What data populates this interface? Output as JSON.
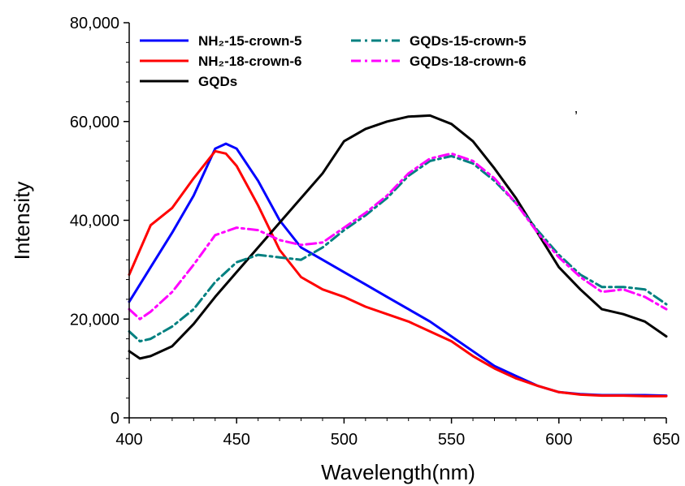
{
  "chart_data": {
    "type": "line",
    "title": "",
    "xlabel": "Wavelength(nm)",
    "ylabel": "Intensity",
    "xlim": [
      400,
      650
    ],
    "ylim": [
      0,
      80000
    ],
    "x_ticks": [
      400,
      450,
      500,
      550,
      600,
      650
    ],
    "x_tick_labels": [
      "400",
      "450",
      "500",
      "550",
      "600",
      "650"
    ],
    "y_ticks": [
      0,
      20000,
      40000,
      60000,
      80000
    ],
    "y_tick_labels": [
      "0",
      "20,000",
      "40,000",
      "60,000",
      "80,000"
    ],
    "grid": false,
    "legend_position": "top",
    "annotation": "’",
    "series": [
      {
        "name": "NH₂-15-crown-5",
        "color": "#0000ff",
        "dash": "solid",
        "points": [
          [
            400,
            23500
          ],
          [
            410,
            30500
          ],
          [
            420,
            37500
          ],
          [
            430,
            45000
          ],
          [
            440,
            54500
          ],
          [
            445,
            55500
          ],
          [
            450,
            54500
          ],
          [
            460,
            48000
          ],
          [
            470,
            40000
          ],
          [
            480,
            34500
          ],
          [
            490,
            32000
          ],
          [
            500,
            29500
          ],
          [
            510,
            27000
          ],
          [
            520,
            24500
          ],
          [
            530,
            22000
          ],
          [
            540,
            19500
          ],
          [
            550,
            16500
          ],
          [
            560,
            13500
          ],
          [
            570,
            10500
          ],
          [
            580,
            8500
          ],
          [
            590,
            6500
          ],
          [
            600,
            5200
          ],
          [
            610,
            4800
          ],
          [
            620,
            4600
          ],
          [
            630,
            4600
          ],
          [
            640,
            4600
          ],
          [
            650,
            4500
          ]
        ]
      },
      {
        "name": "NH₂-18-crown-6",
        "color": "#ff0000",
        "dash": "solid",
        "points": [
          [
            400,
            29000
          ],
          [
            405,
            34000
          ],
          [
            410,
            39000
          ],
          [
            420,
            42500
          ],
          [
            430,
            48500
          ],
          [
            440,
            54000
          ],
          [
            445,
            53500
          ],
          [
            450,
            51000
          ],
          [
            460,
            43000
          ],
          [
            470,
            34000
          ],
          [
            480,
            28500
          ],
          [
            490,
            26000
          ],
          [
            500,
            24500
          ],
          [
            510,
            22500
          ],
          [
            520,
            21000
          ],
          [
            530,
            19500
          ],
          [
            540,
            17500
          ],
          [
            550,
            15500
          ],
          [
            560,
            12500
          ],
          [
            570,
            10000
          ],
          [
            580,
            8000
          ],
          [
            590,
            6500
          ],
          [
            600,
            5200
          ],
          [
            610,
            4700
          ],
          [
            620,
            4500
          ],
          [
            630,
            4500
          ],
          [
            640,
            4400
          ],
          [
            650,
            4400
          ]
        ]
      },
      {
        "name": "GQDs",
        "color": "#000000",
        "dash": "solid",
        "points": [
          [
            400,
            13500
          ],
          [
            405,
            12000
          ],
          [
            410,
            12500
          ],
          [
            420,
            14500
          ],
          [
            430,
            19000
          ],
          [
            440,
            24500
          ],
          [
            450,
            29500
          ],
          [
            460,
            34500
          ],
          [
            470,
            39500
          ],
          [
            480,
            44500
          ],
          [
            490,
            49500
          ],
          [
            500,
            56000
          ],
          [
            510,
            58500
          ],
          [
            520,
            60000
          ],
          [
            530,
            61000
          ],
          [
            540,
            61200
          ],
          [
            550,
            59500
          ],
          [
            560,
            56000
          ],
          [
            570,
            50500
          ],
          [
            580,
            44500
          ],
          [
            590,
            37500
          ],
          [
            600,
            30500
          ],
          [
            610,
            26000
          ],
          [
            620,
            22000
          ],
          [
            630,
            21000
          ],
          [
            640,
            19500
          ],
          [
            650,
            16500
          ]
        ]
      },
      {
        "name": "GQDs-15-crown-5",
        "color": "#008080",
        "dash": "dashdot",
        "points": [
          [
            400,
            17500
          ],
          [
            405,
            15500
          ],
          [
            410,
            16000
          ],
          [
            420,
            18500
          ],
          [
            430,
            22000
          ],
          [
            440,
            27500
          ],
          [
            450,
            31500
          ],
          [
            460,
            33000
          ],
          [
            470,
            32500
          ],
          [
            480,
            32000
          ],
          [
            490,
            34500
          ],
          [
            500,
            38000
          ],
          [
            510,
            41000
          ],
          [
            520,
            44500
          ],
          [
            530,
            49000
          ],
          [
            540,
            52000
          ],
          [
            550,
            53000
          ],
          [
            560,
            51500
          ],
          [
            570,
            48000
          ],
          [
            580,
            43500
          ],
          [
            590,
            38000
          ],
          [
            600,
            33000
          ],
          [
            610,
            29000
          ],
          [
            620,
            26500
          ],
          [
            630,
            26500
          ],
          [
            640,
            26000
          ],
          [
            650,
            23000
          ]
        ]
      },
      {
        "name": "GQDs-18-crown-6",
        "color": "#ff00ff",
        "dash": "dashdot",
        "points": [
          [
            400,
            22000
          ],
          [
            405,
            20000
          ],
          [
            410,
            21500
          ],
          [
            420,
            25500
          ],
          [
            430,
            31000
          ],
          [
            440,
            37000
          ],
          [
            450,
            38500
          ],
          [
            460,
            38000
          ],
          [
            470,
            36000
          ],
          [
            480,
            35000
          ],
          [
            490,
            35500
          ],
          [
            500,
            38500
          ],
          [
            510,
            41500
          ],
          [
            520,
            45000
          ],
          [
            530,
            49500
          ],
          [
            540,
            52500
          ],
          [
            550,
            53500
          ],
          [
            560,
            52000
          ],
          [
            570,
            48500
          ],
          [
            580,
            43500
          ],
          [
            590,
            37500
          ],
          [
            600,
            32500
          ],
          [
            610,
            28500
          ],
          [
            620,
            25500
          ],
          [
            630,
            26000
          ],
          [
            640,
            24500
          ],
          [
            650,
            22000
          ]
        ]
      }
    ]
  }
}
